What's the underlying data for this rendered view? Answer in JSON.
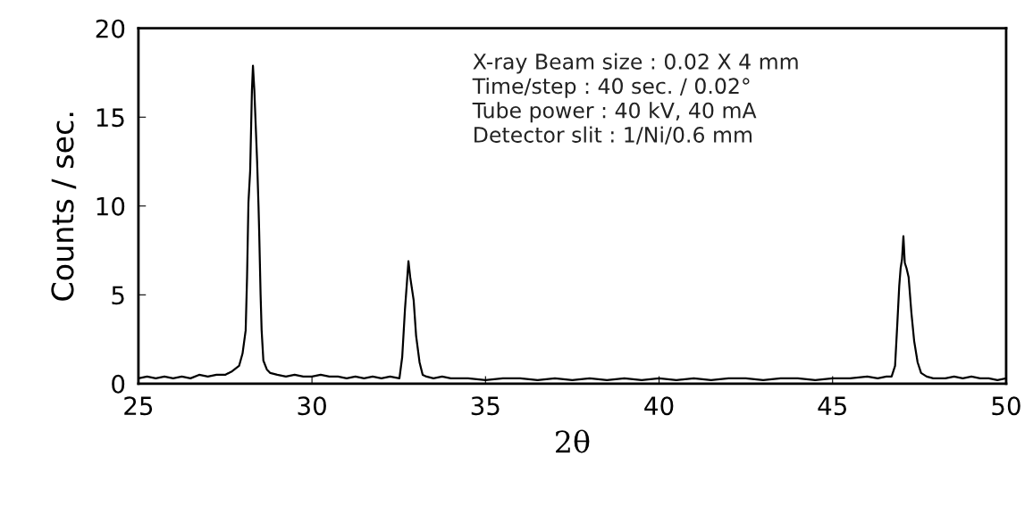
{
  "chart_data": {
    "type": "line",
    "xlabel": "2θ",
    "ylabel": "Counts / sec.",
    "xlim": [
      25,
      50
    ],
    "ylim": [
      0,
      20
    ],
    "xticks": [
      25,
      30,
      35,
      40,
      45,
      50
    ],
    "yticks": [
      0,
      5,
      10,
      15,
      20
    ],
    "grid": false,
    "legend": false,
    "marker": "none",
    "line_style": "solid",
    "annotations": [
      "X-ray Beam size : 0.02 X 4 mm",
      "Time/step : 40 sec. / 0.02°",
      "Tube power : 40 kV, 40 mA",
      "Detector slit : 1/Ni/0.6 mm"
    ],
    "series": [
      {
        "color": "#000000",
        "x": [
          25.0,
          25.25,
          25.5,
          25.75,
          26.0,
          26.25,
          26.5,
          26.75,
          27.0,
          27.25,
          27.5,
          27.7,
          27.9,
          28.0,
          28.09,
          28.13,
          28.17,
          28.22,
          28.27,
          28.3,
          28.34,
          28.38,
          28.42,
          28.46,
          28.48,
          28.52,
          28.55,
          28.6,
          28.7,
          28.8,
          29.0,
          29.25,
          29.5,
          29.75,
          30.0,
          30.25,
          30.5,
          30.75,
          31.0,
          31.25,
          31.5,
          31.75,
          32.0,
          32.25,
          32.52,
          32.6,
          32.68,
          32.74,
          32.78,
          32.83,
          32.93,
          33.0,
          33.1,
          33.19,
          33.3,
          33.5,
          33.75,
          34.0,
          34.5,
          35.0,
          35.5,
          36.0,
          36.5,
          37.0,
          37.5,
          38.0,
          38.5,
          39.0,
          39.5,
          40.0,
          40.5,
          41.0,
          41.5,
          42.0,
          42.5,
          43.0,
          43.5,
          44.0,
          44.5,
          45.0,
          45.5,
          46.0,
          46.3,
          46.55,
          46.7,
          46.8,
          46.86,
          46.92,
          46.96,
          47.0,
          47.04,
          47.08,
          47.13,
          47.19,
          47.27,
          47.35,
          47.45,
          47.55,
          47.71,
          47.9,
          48.25,
          48.5,
          48.75,
          49.0,
          49.25,
          49.5,
          49.75,
          50.0
        ],
        "values": [
          0.3,
          0.4,
          0.3,
          0.4,
          0.3,
          0.4,
          0.3,
          0.5,
          0.4,
          0.5,
          0.5,
          0.7,
          1.0,
          1.7,
          3.0,
          6.0,
          10.2,
          12.0,
          16.5,
          17.9,
          16.5,
          14.5,
          12.5,
          10.0,
          8.5,
          5.0,
          3.0,
          1.3,
          0.8,
          0.6,
          0.5,
          0.4,
          0.5,
          0.4,
          0.4,
          0.5,
          0.4,
          0.4,
          0.3,
          0.4,
          0.3,
          0.4,
          0.3,
          0.4,
          0.3,
          1.5,
          4.2,
          5.8,
          6.9,
          6.0,
          4.7,
          2.7,
          1.2,
          0.5,
          0.4,
          0.3,
          0.4,
          0.3,
          0.3,
          0.2,
          0.3,
          0.3,
          0.2,
          0.3,
          0.2,
          0.3,
          0.2,
          0.3,
          0.2,
          0.3,
          0.2,
          0.3,
          0.2,
          0.3,
          0.3,
          0.2,
          0.3,
          0.3,
          0.2,
          0.3,
          0.3,
          0.4,
          0.3,
          0.4,
          0.4,
          1.0,
          3.2,
          5.5,
          6.5,
          7.0,
          8.3,
          6.8,
          6.5,
          6.0,
          4.0,
          2.4,
          1.2,
          0.6,
          0.4,
          0.3,
          0.3,
          0.4,
          0.3,
          0.4,
          0.3,
          0.3,
          0.2,
          0.3
        ]
      }
    ]
  }
}
